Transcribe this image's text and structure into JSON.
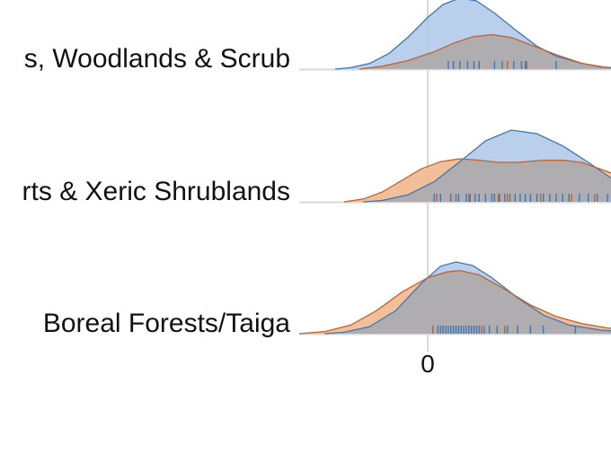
{
  "chart_data": {
    "type": "area",
    "colors": {
      "blue_fill": "#aec7e8",
      "blue_stroke": "#3a78b4",
      "orange_fill": "#f0b48a",
      "orange_stroke": "#c2612a",
      "overlap_fill": "#b0adb1",
      "baseline": "#d9d9d9",
      "zero_line": "#d9d9d9",
      "text": "#111111"
    },
    "x_axis": {
      "ticks": [
        {
          "value": 0,
          "label": "0"
        }
      ],
      "range": [
        -1.15,
        1.6
      ]
    },
    "rows": [
      {
        "label": "s, Woodlands & Scrub",
        "series": [
          {
            "color": "blue",
            "curve": [
              [
                -0.72,
                0.0
              ],
              [
                -0.6,
                0.02
              ],
              [
                -0.45,
                0.08
              ],
              [
                -0.3,
                0.22
              ],
              [
                -0.15,
                0.45
              ],
              [
                0.0,
                0.72
              ],
              [
                0.12,
                0.9
              ],
              [
                0.25,
                0.99
              ],
              [
                0.38,
                0.95
              ],
              [
                0.52,
                0.78
              ],
              [
                0.68,
                0.55
              ],
              [
                0.85,
                0.32
              ],
              [
                1.0,
                0.18
              ],
              [
                1.2,
                0.08
              ],
              [
                1.35,
                0.03
              ],
              [
                1.6,
                0.0
              ]
            ],
            "rug": [
              0.16,
              0.2,
              0.25,
              0.31,
              0.36,
              0.4,
              0.52,
              0.58,
              0.67,
              0.73,
              0.76,
              1.0
            ]
          },
          {
            "color": "orange",
            "curve": [
              [
                -0.53,
                0.0
              ],
              [
                -0.35,
                0.04
              ],
              [
                -0.15,
                0.12
              ],
              [
                0.05,
                0.24
              ],
              [
                0.2,
                0.36
              ],
              [
                0.35,
                0.45
              ],
              [
                0.5,
                0.48
              ],
              [
                0.65,
                0.44
              ],
              [
                0.8,
                0.34
              ],
              [
                1.0,
                0.2
              ],
              [
                1.2,
                0.08
              ],
              [
                1.4,
                0.02
              ],
              [
                1.6,
                0.0
              ]
            ],
            "rug": [
              0.62,
              0.77
            ]
          }
        ]
      },
      {
        "label": "rts & Xeric Shrublands",
        "series": [
          {
            "color": "blue",
            "curve": [
              [
                -0.5,
                0.0
              ],
              [
                -0.35,
                0.02
              ],
              [
                -0.15,
                0.1
              ],
              [
                0.05,
                0.28
              ],
              [
                0.25,
                0.56
              ],
              [
                0.45,
                0.85
              ],
              [
                0.65,
                1.0
              ],
              [
                0.85,
                0.95
              ],
              [
                1.05,
                0.78
              ],
              [
                1.25,
                0.55
              ],
              [
                1.45,
                0.3
              ],
              [
                1.6,
                0.16
              ]
            ],
            "rug": [
              0.05,
              0.1,
              0.18,
              0.24,
              0.3,
              0.33,
              0.37,
              0.4,
              0.45,
              0.5,
              0.52,
              0.56,
              0.6,
              0.64,
              0.68,
              0.72,
              0.76,
              0.8,
              0.85,
              0.9,
              0.95,
              1.0,
              1.05,
              1.1,
              1.18,
              1.25,
              1.32,
              1.4,
              1.48,
              1.55
            ]
          },
          {
            "color": "orange",
            "curve": [
              [
                -0.65,
                0.0
              ],
              [
                -0.5,
                0.04
              ],
              [
                -0.35,
                0.14
              ],
              [
                -0.2,
                0.3
              ],
              [
                -0.05,
                0.46
              ],
              [
                0.1,
                0.56
              ],
              [
                0.25,
                0.6
              ],
              [
                0.4,
                0.58
              ],
              [
                0.55,
                0.55
              ],
              [
                0.7,
                0.55
              ],
              [
                0.9,
                0.58
              ],
              [
                1.05,
                0.58
              ],
              [
                1.2,
                0.55
              ],
              [
                1.4,
                0.42
              ],
              [
                1.6,
                0.28
              ]
            ],
            "rug": [
              0.07,
              0.22,
              0.32,
              0.55,
              0.62,
              0.88,
              1.12,
              1.3
            ]
          }
        ]
      },
      {
        "label": "Boreal Forests/Taiga",
        "series": [
          {
            "color": "blue",
            "curve": [
              [
                -0.8,
                0.0
              ],
              [
                -0.65,
                0.02
              ],
              [
                -0.45,
                0.1
              ],
              [
                -0.25,
                0.32
              ],
              [
                -0.05,
                0.7
              ],
              [
                0.1,
                0.94
              ],
              [
                0.22,
                1.0
              ],
              [
                0.35,
                0.95
              ],
              [
                0.5,
                0.78
              ],
              [
                0.7,
                0.5
              ],
              [
                0.9,
                0.26
              ],
              [
                1.1,
                0.12
              ],
              [
                1.35,
                0.05
              ],
              [
                1.6,
                0.02
              ]
            ],
            "rug": [
              0.08,
              0.1,
              0.12,
              0.14,
              0.16,
              0.18,
              0.2,
              0.22,
              0.24,
              0.26,
              0.28,
              0.3,
              0.32,
              0.34,
              0.36,
              0.38,
              0.4,
              0.44,
              0.48,
              0.54,
              0.62,
              0.7,
              0.8,
              0.9,
              1.15
            ]
          },
          {
            "color": "orange",
            "curve": [
              [
                -1.0,
                0.0
              ],
              [
                -0.8,
                0.03
              ],
              [
                -0.6,
                0.12
              ],
              [
                -0.4,
                0.32
              ],
              [
                -0.2,
                0.58
              ],
              [
                0.0,
                0.78
              ],
              [
                0.15,
                0.86
              ],
              [
                0.25,
                0.88
              ],
              [
                0.4,
                0.82
              ],
              [
                0.6,
                0.62
              ],
              [
                0.8,
                0.4
              ],
              [
                1.0,
                0.24
              ],
              [
                1.2,
                0.14
              ],
              [
                1.4,
                0.08
              ],
              [
                1.6,
                0.05
              ]
            ],
            "rug": [
              0.04,
              0.42,
              0.6
            ]
          }
        ]
      }
    ]
  }
}
